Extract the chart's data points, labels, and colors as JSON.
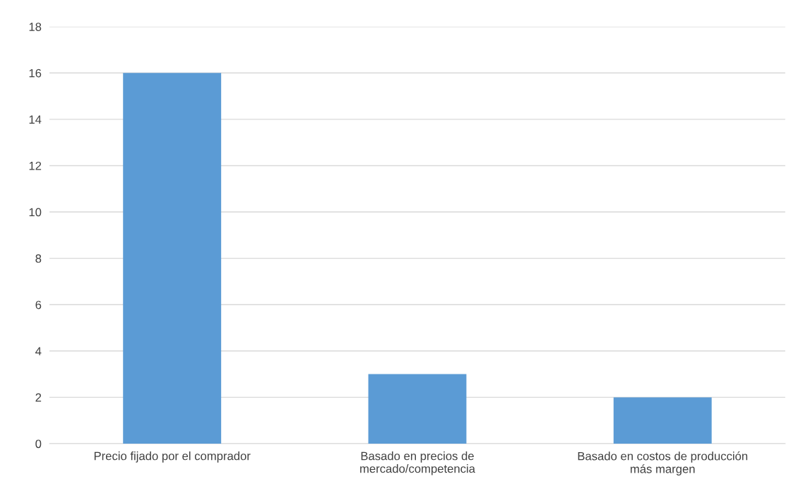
{
  "chart_data": {
    "type": "bar",
    "categories": [
      "Precio fijado por el comprador",
      "Basado en precios de\nmercado/competencia",
      "Basado en costos de producción\nmás margen"
    ],
    "values": [
      16,
      3,
      2
    ],
    "color": "#5b9bd5",
    "ylim": [
      0,
      18
    ],
    "yticks": [
      0,
      2,
      4,
      6,
      8,
      10,
      12,
      14,
      16,
      18
    ],
    "grid": "y",
    "legend": false
  }
}
